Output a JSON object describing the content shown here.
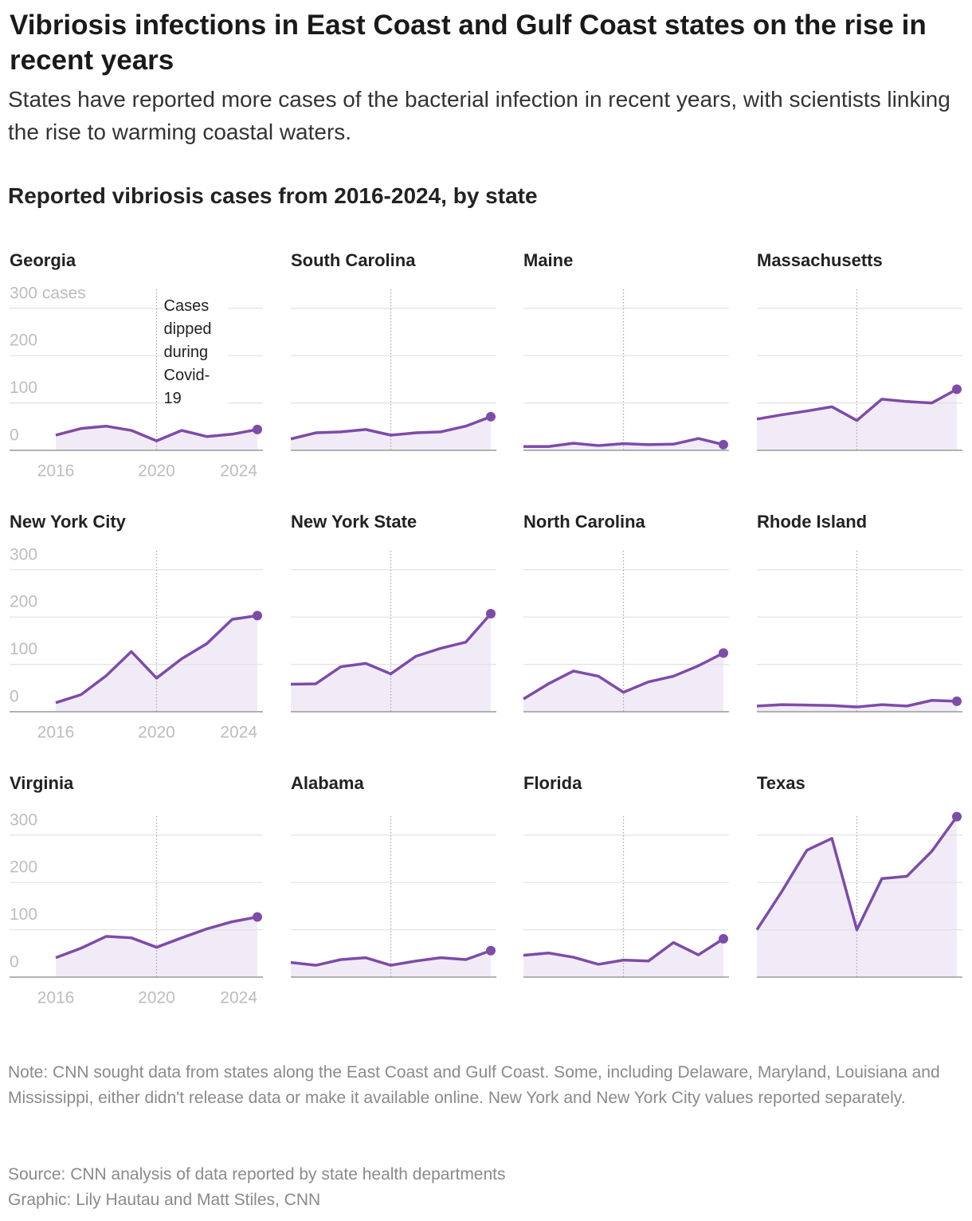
{
  "title": "Vibriosis infections in East Coast and Gulf Coast states on the rise in recent years",
  "subtitle": "States have reported more cases of the bacterial infection in recent years, with scientists linking the rise to warming coastal waters.",
  "chart_heading": "Reported vibriosis cases from 2016-2024, by state",
  "chart_data": [
    {
      "type": "area",
      "title": "Georgia",
      "x": [
        2016,
        2017,
        2018,
        2019,
        2020,
        2021,
        2022,
        2023,
        2024
      ],
      "values": [
        32,
        46,
        51,
        42,
        20,
        42,
        29,
        34,
        44
      ],
      "xlim": [
        2016,
        2024
      ],
      "ylim": [
        0,
        340
      ],
      "yticks": [
        0,
        100,
        200,
        {
          "value": 300,
          "label": "300 cases"
        }
      ],
      "xticks": [
        2016,
        2020,
        2024
      ],
      "show_ytick_labels": true,
      "vline": 2020,
      "annotation": "Cases dipped during Covid-19",
      "grid": true,
      "color": "#7d4ba9",
      "fill": "#f1ebf7"
    },
    {
      "type": "area",
      "title": "South Carolina",
      "x": [
        2016,
        2017,
        2018,
        2019,
        2020,
        2021,
        2022,
        2023,
        2024
      ],
      "values": [
        24,
        37,
        39,
        44,
        32,
        37,
        39,
        51,
        71
      ],
      "xlim": [
        2016,
        2024
      ],
      "ylim": [
        0,
        340
      ],
      "yticks": [
        0,
        100,
        200,
        300
      ],
      "show_ytick_labels": false,
      "vline": 2020,
      "grid": true,
      "color": "#7d4ba9",
      "fill": "#f1ebf7"
    },
    {
      "type": "area",
      "title": "Maine",
      "x": [
        2016,
        2017,
        2018,
        2019,
        2020,
        2021,
        2022,
        2023,
        2024
      ],
      "values": [
        8,
        8,
        15,
        10,
        14,
        12,
        13,
        25,
        12
      ],
      "xlim": [
        2016,
        2024
      ],
      "ylim": [
        0,
        340
      ],
      "yticks": [
        0,
        100,
        200,
        300
      ],
      "show_ytick_labels": false,
      "vline": 2020,
      "grid": true,
      "color": "#7d4ba9",
      "fill": "#f1ebf7"
    },
    {
      "type": "area",
      "title": "Massachusetts",
      "x": [
        2016,
        2017,
        2018,
        2019,
        2020,
        2021,
        2022,
        2023,
        2024
      ],
      "values": [
        66,
        75,
        83,
        92,
        63,
        108,
        103,
        100,
        129
      ],
      "xlim": [
        2016,
        2024
      ],
      "ylim": [
        0,
        340
      ],
      "yticks": [
        0,
        100,
        200,
        300
      ],
      "show_ytick_labels": false,
      "vline": 2020,
      "grid": true,
      "color": "#7d4ba9",
      "fill": "#f1ebf7"
    },
    {
      "type": "area",
      "title": "New York City",
      "x": [
        2016,
        2017,
        2018,
        2019,
        2020,
        2021,
        2022,
        2023,
        2024
      ],
      "values": [
        19,
        36,
        76,
        127,
        71,
        112,
        144,
        195,
        203
      ],
      "xlim": [
        2016,
        2024
      ],
      "ylim": [
        0,
        340
      ],
      "yticks": [
        0,
        100,
        200,
        300
      ],
      "xticks": [
        2016,
        2020,
        2024
      ],
      "show_ytick_labels": true,
      "vline": 2020,
      "grid": true,
      "color": "#7d4ba9",
      "fill": "#f1ebf7"
    },
    {
      "type": "area",
      "title": "New York State",
      "x": [
        2016,
        2017,
        2018,
        2019,
        2020,
        2021,
        2022,
        2023,
        2024
      ],
      "values": [
        58,
        59,
        95,
        102,
        80,
        117,
        134,
        147,
        207
      ],
      "xlim": [
        2016,
        2024
      ],
      "ylim": [
        0,
        340
      ],
      "yticks": [
        0,
        100,
        200,
        300
      ],
      "show_ytick_labels": false,
      "vline": 2020,
      "grid": true,
      "color": "#7d4ba9",
      "fill": "#f1ebf7"
    },
    {
      "type": "area",
      "title": "North Carolina",
      "x": [
        2016,
        2017,
        2018,
        2019,
        2020,
        2021,
        2022,
        2023,
        2024
      ],
      "values": [
        27,
        59,
        86,
        75,
        41,
        63,
        75,
        97,
        124
      ],
      "xlim": [
        2016,
        2024
      ],
      "ylim": [
        0,
        340
      ],
      "yticks": [
        0,
        100,
        200,
        300
      ],
      "show_ytick_labels": false,
      "vline": 2020,
      "grid": true,
      "color": "#7d4ba9",
      "fill": "#f1ebf7"
    },
    {
      "type": "area",
      "title": "Rhode Island",
      "x": [
        2016,
        2017,
        2018,
        2019,
        2020,
        2021,
        2022,
        2023,
        2024
      ],
      "values": [
        12,
        15,
        14,
        13,
        10,
        15,
        12,
        24,
        22
      ],
      "xlim": [
        2016,
        2024
      ],
      "ylim": [
        0,
        340
      ],
      "yticks": [
        0,
        100,
        200,
        300
      ],
      "show_ytick_labels": false,
      "vline": 2020,
      "grid": true,
      "color": "#7d4ba9",
      "fill": "#f1ebf7"
    },
    {
      "type": "area",
      "title": "Virginia",
      "x": [
        2016,
        2017,
        2018,
        2019,
        2020,
        2021,
        2022,
        2023,
        2024
      ],
      "values": [
        41,
        61,
        86,
        83,
        63,
        83,
        102,
        117,
        127
      ],
      "xlim": [
        2016,
        2024
      ],
      "ylim": [
        0,
        340
      ],
      "yticks": [
        0,
        100,
        200,
        300
      ],
      "xticks": [
        2016,
        2020,
        2024
      ],
      "show_ytick_labels": true,
      "vline": 2020,
      "grid": true,
      "color": "#7d4ba9",
      "fill": "#f1ebf7"
    },
    {
      "type": "area",
      "title": "Alabama",
      "x": [
        2016,
        2017,
        2018,
        2019,
        2020,
        2021,
        2022,
        2023,
        2024
      ],
      "values": [
        31,
        25,
        37,
        41,
        25,
        34,
        41,
        37,
        56
      ],
      "xlim": [
        2016,
        2024
      ],
      "ylim": [
        0,
        340
      ],
      "yticks": [
        0,
        100,
        200,
        300
      ],
      "show_ytick_labels": false,
      "vline": 2020,
      "grid": true,
      "color": "#7d4ba9",
      "fill": "#f1ebf7"
    },
    {
      "type": "area",
      "title": "Florida",
      "x": [
        2016,
        2017,
        2018,
        2019,
        2020,
        2021,
        2022,
        2023,
        2024
      ],
      "values": [
        46,
        51,
        42,
        27,
        36,
        34,
        73,
        47,
        81
      ],
      "xlim": [
        2016,
        2024
      ],
      "ylim": [
        0,
        340
      ],
      "yticks": [
        0,
        100,
        200,
        300
      ],
      "show_ytick_labels": false,
      "vline": 2020,
      "grid": true,
      "color": "#7d4ba9",
      "fill": "#f1ebf7"
    },
    {
      "type": "area",
      "title": "Texas",
      "x": [
        2016,
        2017,
        2018,
        2019,
        2020,
        2021,
        2022,
        2023,
        2024
      ],
      "values": [
        100,
        181,
        268,
        293,
        100,
        208,
        213,
        266,
        339
      ],
      "xlim": [
        2016,
        2024
      ],
      "ylim": [
        0,
        340
      ],
      "yticks": [
        0,
        100,
        200,
        300
      ],
      "show_ytick_labels": false,
      "vline": 2020,
      "grid": true,
      "color": "#7d4ba9",
      "fill": "#f1ebf7"
    }
  ],
  "note": "Note: CNN sought data from states along the East Coast and Gulf Coast. Some, including Delaware, Maryland, Louisiana and Mississippi, either didn't release data or make it available online. New York and New York City values reported separately.",
  "source": "Source: CNN analysis of data reported by state health departments",
  "credit": "Graphic: Lily Hautau and Matt Stiles, CNN"
}
